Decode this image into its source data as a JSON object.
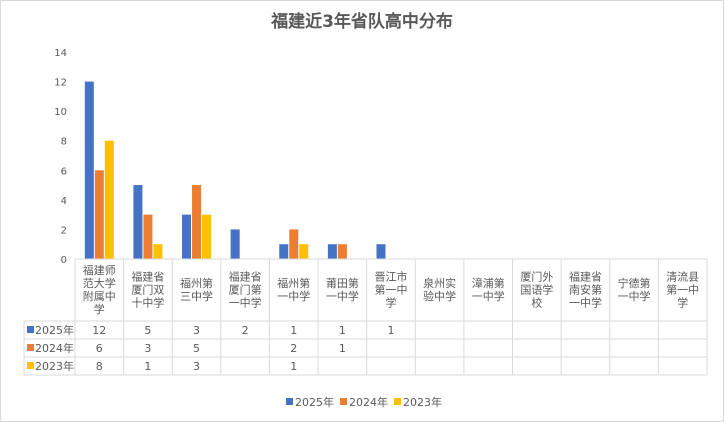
{
  "chart_data": {
    "type": "bar",
    "title": "福建近3年省队高中分布",
    "xlabel": "",
    "ylabel": "",
    "ylim": [
      0,
      14
    ],
    "yticks": [
      "0",
      "2",
      "4",
      "6",
      "8",
      "10",
      "12",
      "14"
    ],
    "grid": false,
    "legend_position": "bottom",
    "categories": [
      [
        "福建师",
        "范大学",
        "附属中",
        "学"
      ],
      [
        "福建省",
        "厦门双",
        "十中学"
      ],
      [
        "福州第",
        "三中学"
      ],
      [
        "福建省",
        "厦门第",
        "一中学"
      ],
      [
        "福州第",
        "一中学"
      ],
      [
        "莆田第",
        "一中学"
      ],
      [
        "晋江市",
        "第一中",
        "学"
      ],
      [
        "泉州实",
        "验中学"
      ],
      [
        "漳浦第",
        "一中学"
      ],
      [
        "厦门外",
        "国语学",
        "校"
      ],
      [
        "福建省",
        "南安第",
        "一中学"
      ],
      [
        "宁德第",
        "一中学"
      ],
      [
        "清流县",
        "第一中",
        "学"
      ]
    ],
    "series": [
      {
        "name": "2025年",
        "color": "#4472c4",
        "values": [
          12,
          5,
          3,
          2,
          1,
          1,
          1,
          null,
          null,
          null,
          null,
          null,
          null
        ]
      },
      {
        "name": "2024年",
        "color": "#ed7d31",
        "values": [
          6,
          3,
          5,
          null,
          2,
          1,
          null,
          null,
          null,
          null,
          null,
          null,
          null
        ]
      },
      {
        "name": "2023年",
        "color": "#ffc000",
        "values": [
          8,
          1,
          3,
          null,
          1,
          null,
          null,
          null,
          null,
          null,
          null,
          null,
          null
        ]
      }
    ]
  }
}
